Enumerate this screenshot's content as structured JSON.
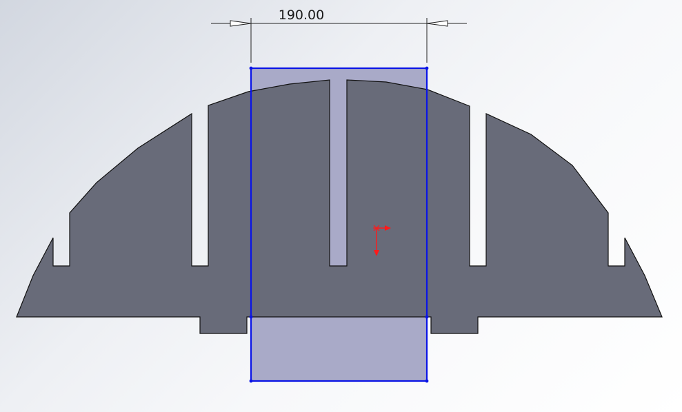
{
  "dimension": {
    "value_text": "190.00"
  },
  "colors": {
    "part_fill": "#686b79",
    "part_outline": "#111111",
    "sketch_line": "#0a14e6",
    "sketch_fill": "#a9aac8",
    "origin": "#ff1a1a",
    "dimension_line": "#222222"
  }
}
